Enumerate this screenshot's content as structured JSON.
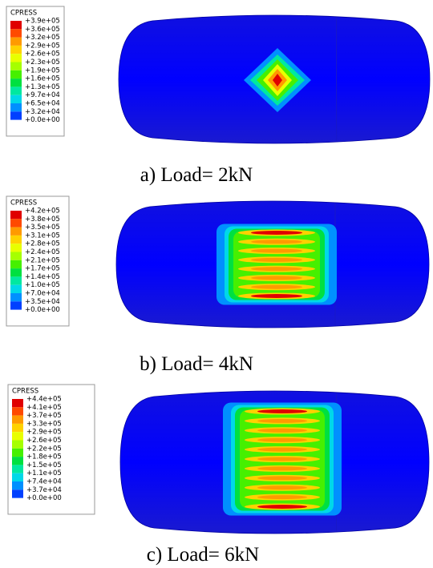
{
  "panels": [
    {
      "legend": {
        "title": "CPRESS",
        "labels": [
          "+3.9e+05",
          "+3.6e+05",
          "+3.2e+05",
          "+2.9e+05",
          "+2.6e+05",
          "+2.3e+05",
          "+1.9e+05",
          "+1.6e+05",
          "+1.3e+05",
          "+9.7e+04",
          "+6.5e+04",
          "+3.2e+04",
          "+0.0e+00"
        ]
      },
      "caption": "a) Load= 2kN"
    },
    {
      "legend": {
        "title": "CPRESS",
        "labels": [
          "+4.2e+05",
          "+3.8e+05",
          "+3.5e+05",
          "+3.1e+05",
          "+2.8e+05",
          "+2.4e+05",
          "+2.1e+05",
          "+1.7e+05",
          "+1.4e+05",
          "+1.0e+05",
          "+7.0e+04",
          "+3.5e+04",
          "+0.0e+00"
        ]
      },
      "caption": "b) Load= 4kN"
    },
    {
      "legend": {
        "title": "CPRESS",
        "labels": [
          "+4.4e+05",
          "+4.1e+05",
          "+3.7e+05",
          "+3.3e+05",
          "+2.9e+05",
          "+2.6e+05",
          "+2.2e+05",
          "+1.8e+05",
          "+1.5e+05",
          "+1.1e+05",
          "+7.4e+04",
          "+3.7e+04",
          "+0.0e+00"
        ]
      },
      "caption": "c) Load= 6kN"
    }
  ]
}
